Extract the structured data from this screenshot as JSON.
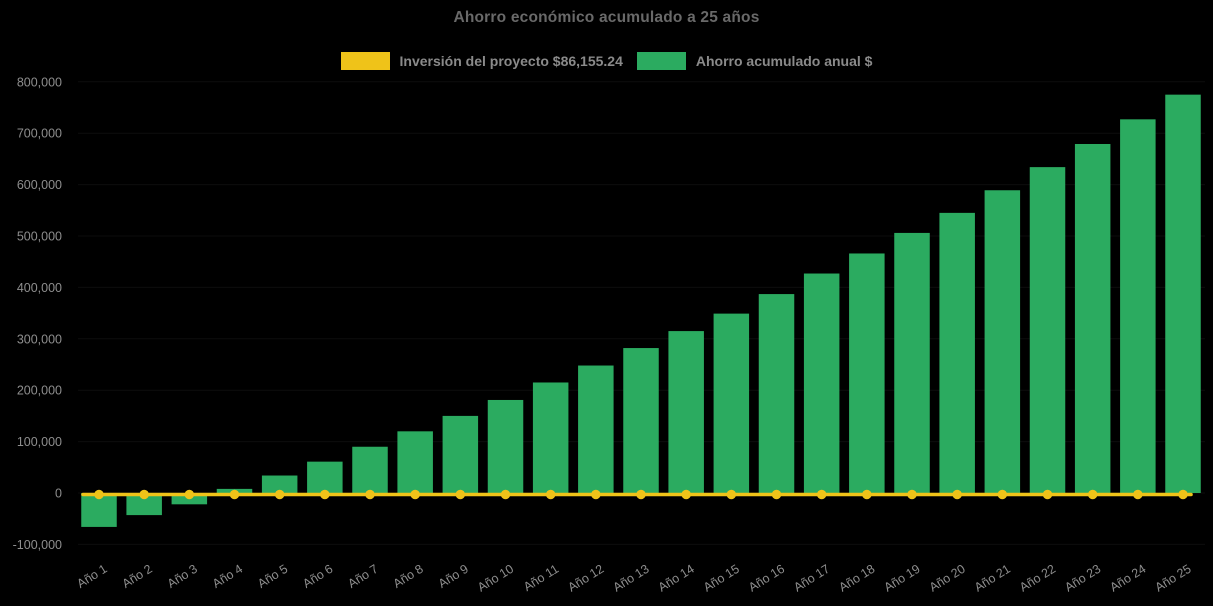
{
  "title": "Ahorro económico acumulado a 25 años",
  "colors": {
    "background": "#000000",
    "bar_green": "#2bab60",
    "line_yellow": "#efc319",
    "title_text": "#696969",
    "axis_text": "#8e8e8e",
    "legend_text": "#8a8a8a"
  },
  "legend": {
    "items": [
      {
        "label": "Inversión del proyecto $86,155.24",
        "color": "#efc319",
        "swatch": "investment-swatch"
      },
      {
        "label": "Ahorro acumulado anual $",
        "color": "#2bab60",
        "swatch": "savings-swatch"
      }
    ]
  },
  "chart_data": {
    "type": "bar",
    "title": "Ahorro económico acumulado a 25 años",
    "categories": [
      "Año 1",
      "Año 2",
      "Año 3",
      "Año 4",
      "Año 5",
      "Año 6",
      "Año 7",
      "Año 8",
      "Año 9",
      "Año 10",
      "Año 11",
      "Año 12",
      "Año 13",
      "Año 14",
      "Año 15",
      "Año 16",
      "Año 17",
      "Año 18",
      "Año 19",
      "Año 20",
      "Año 21",
      "Año 22",
      "Año 23",
      "Año 24",
      "Año 25"
    ],
    "series": [
      {
        "name": "Ahorro acumulado anual $",
        "type": "bar",
        "color": "#2bab60",
        "values": [
          -66000,
          -43000,
          -22000,
          8000,
          34000,
          61000,
          90000,
          120000,
          150000,
          181000,
          215000,
          248000,
          282000,
          315000,
          349000,
          387000,
          427000,
          466000,
          506000,
          545000,
          589000,
          634000,
          679000,
          727000,
          775000
        ]
      },
      {
        "name": "Inversión del proyecto $86,155.24",
        "type": "line",
        "color": "#efc319",
        "marker": "circle",
        "values": [
          0,
          0,
          0,
          0,
          0,
          0,
          0,
          0,
          0,
          0,
          0,
          0,
          0,
          0,
          0,
          0,
          0,
          0,
          0,
          0,
          0,
          0,
          0,
          0,
          0
        ]
      }
    ],
    "investment_label_value": "$86,155.24",
    "xlabel": "",
    "ylabel": "",
    "ylim": [
      -100000,
      800000
    ],
    "ytick_step": 100000,
    "ytick_labels": [
      "800,000",
      "700,000",
      "600,000",
      "500,000",
      "400,000",
      "300,000",
      "200,000",
      "100,000",
      "0",
      "-100,000"
    ],
    "grid": false,
    "legend_position": "top"
  }
}
